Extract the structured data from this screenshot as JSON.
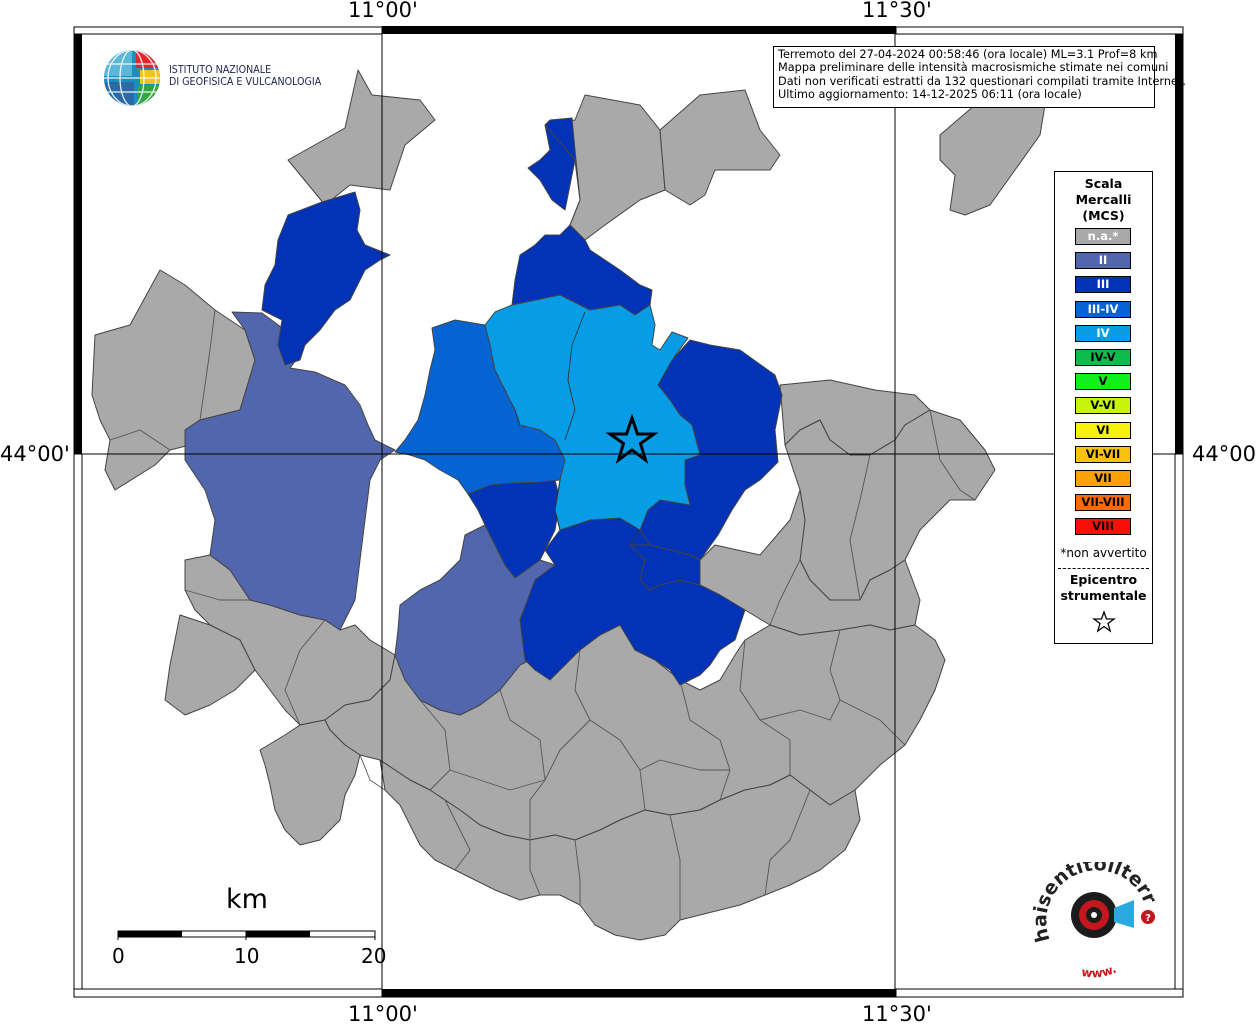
{
  "map": {
    "lon_labels": [
      "11°00'",
      "11°30'"
    ],
    "lat_labels": [
      "44°00'"
    ]
  },
  "header_logo": {
    "name": "ingv-logo",
    "line1": "ISTITUTO NAZIONALE",
    "line2": "DI GEOFISICA E VULCANOLOGIA"
  },
  "info": {
    "line1": "Terremoto del 27-04-2024 00:58:46 (ora locale) ML=3.1 Prof=8 km",
    "line2": "Mappa preliminare delle intensità macrosismiche stimate nei comuni",
    "line3": "Dati non verificati estratti da 132 questionari compilati tramite Internet.",
    "line4": "Ultimo aggiornamento: 14-12-2025 06:11 (ora locale)"
  },
  "legend": {
    "title1": "Scala",
    "title2": "Mercalli",
    "title3": "(MCS)",
    "items": [
      {
        "label": "n.a.*",
        "color": "#a9a9a9",
        "text_color": "#ffffff"
      },
      {
        "label": "II",
        "color": "#5166ac",
        "text_color": "#ffffff"
      },
      {
        "label": "III",
        "color": "#0232b6",
        "text_color": "#ffffff"
      },
      {
        "label": "III-IV",
        "color": "#0663d2",
        "text_color": "#ffffff"
      },
      {
        "label": "IV",
        "color": "#069ce6",
        "text_color": "#ffffff"
      },
      {
        "label": "IV-V",
        "color": "#0ebb4b",
        "text_color": "#000000"
      },
      {
        "label": "V",
        "color": "#0ff01c",
        "text_color": "#000000"
      },
      {
        "label": "V-VI",
        "color": "#c6f40c",
        "text_color": "#000000"
      },
      {
        "label": "VI",
        "color": "#f7f20b",
        "text_color": "#000000"
      },
      {
        "label": "VI-VII",
        "color": "#f9c20b",
        "text_color": "#000000"
      },
      {
        "label": "VII",
        "color": "#fba207",
        "text_color": "#000000"
      },
      {
        "label": "VII-VIII",
        "color": "#fb6a05",
        "text_color": "#000000"
      },
      {
        "label": "VIII",
        "color": "#f90f05",
        "text_color": "#000000"
      }
    ],
    "note": "*non avvertito",
    "epicenter1": "Epicentro",
    "epicenter2": "strumentale"
  },
  "scale_bar": {
    "unit": "km",
    "ticks": [
      "0",
      "10",
      "20"
    ]
  },
  "footer_logo": {
    "name": "haisentitoilterremoto-logo",
    "text": "haisentitoilterremoto.it",
    "url": "www."
  }
}
